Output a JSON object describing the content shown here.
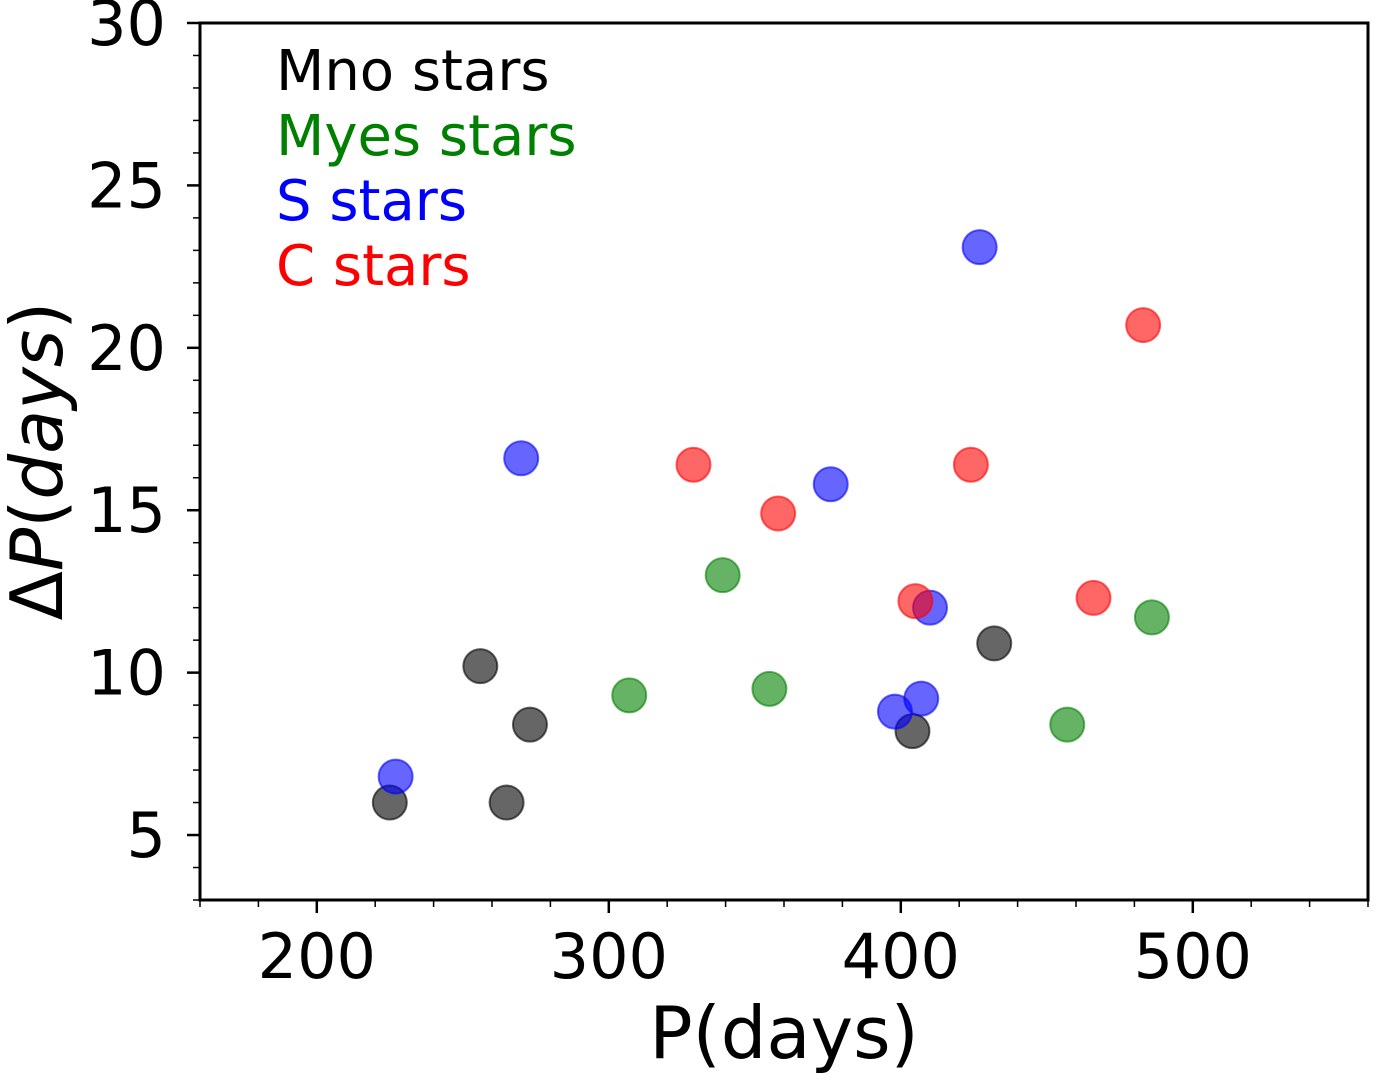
{
  "chart_data": {
    "type": "scatter",
    "title": "",
    "xlabel": "P(days)",
    "ylabel_prefix": "Δ",
    "ylabel_italic": "P",
    "ylabel_paren_open": "(",
    "ylabel_italic_unit": "days",
    "ylabel_paren_close": ")",
    "xlim": [
      160,
      560
    ],
    "ylim": [
      3,
      30
    ],
    "xticks": [
      200,
      300,
      400,
      500
    ],
    "yticks": [
      5,
      10,
      15,
      20,
      25,
      30
    ],
    "legend_position": "top-left",
    "series": [
      {
        "name": "Mno stars",
        "color": "#000000",
        "x": [
          225,
          265,
          256,
          273,
          404,
          432
        ],
        "y": [
          6.0,
          6.0,
          10.2,
          8.4,
          8.2,
          10.9
        ]
      },
      {
        "name": "Myes stars",
        "color": "#008000",
        "x": [
          307,
          339,
          355,
          457,
          486
        ],
        "y": [
          9.3,
          13.0,
          9.5,
          8.4,
          11.7
        ]
      },
      {
        "name": "S stars",
        "color": "#0000ff",
        "x": [
          227,
          270,
          376,
          398,
          407,
          410,
          427
        ],
        "y": [
          6.8,
          16.6,
          15.8,
          8.8,
          9.2,
          12.0,
          23.1
        ]
      },
      {
        "name": "C stars",
        "color": "#ff0000",
        "x": [
          329,
          358,
          405,
          424,
          466,
          483
        ],
        "y": [
          16.4,
          14.9,
          12.2,
          16.4,
          12.3,
          20.7
        ]
      }
    ]
  }
}
